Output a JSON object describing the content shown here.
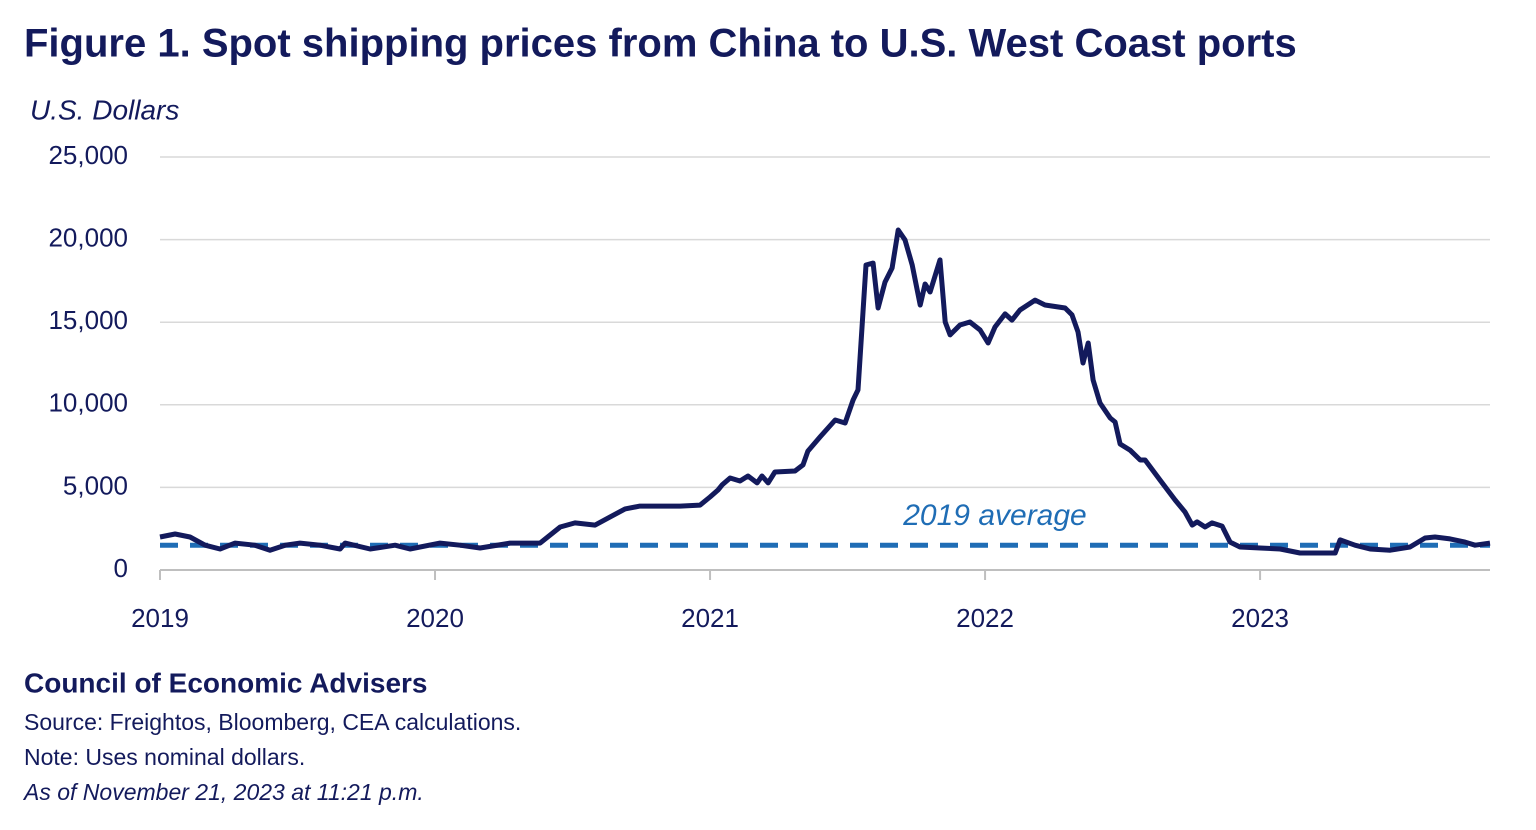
{
  "chart_data": {
    "type": "line",
    "title": "Figure 1. Spot shipping prices from China to U.S. West Coast ports",
    "y_label": "U.S. Dollars",
    "x": [
      2019.0,
      2019.055,
      2019.109,
      2019.164,
      2019.218,
      2019.273,
      2019.345,
      2019.4,
      2019.455,
      2019.509,
      2019.582,
      2019.655,
      2019.673,
      2019.764,
      2019.855,
      2019.909,
      2020.018,
      2020.091,
      2020.164,
      2020.273,
      2020.382,
      2020.455,
      2020.509,
      2020.582,
      2020.636,
      2020.691,
      2020.745,
      2020.891,
      2020.964,
      2021.0,
      2021.029,
      2021.044,
      2021.073,
      2021.109,
      2021.138,
      2021.171,
      2021.189,
      2021.211,
      2021.236,
      2021.309,
      2021.338,
      2021.356,
      2021.4,
      2021.455,
      2021.491,
      2021.52,
      2021.538,
      2021.567,
      2021.593,
      2021.611,
      2021.636,
      2021.662,
      2021.684,
      2021.709,
      2021.735,
      2021.764,
      2021.782,
      2021.8,
      2021.836,
      2021.855,
      2021.873,
      2021.909,
      2021.945,
      2021.982,
      2022.011,
      2022.036,
      2022.073,
      2022.098,
      2022.127,
      2022.182,
      2022.218,
      2022.291,
      2022.316,
      2022.338,
      2022.356,
      2022.375,
      2022.393,
      2022.418,
      2022.455,
      2022.473,
      2022.491,
      2022.527,
      2022.564,
      2022.582,
      2022.636,
      2022.691,
      2022.727,
      2022.753,
      2022.771,
      2022.8,
      2022.825,
      2022.862,
      2022.891,
      2022.927,
      2023.0,
      2023.073,
      2023.145,
      2023.273,
      2023.291,
      2023.345,
      2023.4,
      2023.473,
      2023.545,
      2023.6,
      2023.636,
      2023.691,
      2023.745,
      2023.782,
      2023.836
    ],
    "values": [
      2000,
      2180,
      2000,
      1500,
      1270,
      1630,
      1500,
      1200,
      1500,
      1630,
      1500,
      1270,
      1630,
      1270,
      1500,
      1270,
      1630,
      1500,
      1330,
      1630,
      1630,
      2600,
      2850,
      2720,
      3200,
      3700,
      3870,
      3870,
      3930,
      4420,
      4840,
      5150,
      5570,
      5390,
      5690,
      5270,
      5690,
      5270,
      5930,
      5990,
      6360,
      7200,
      8050,
      9080,
      8900,
      10290,
      10900,
      18460,
      18580,
      15860,
      17430,
      18280,
      20580,
      19980,
      18460,
      16040,
      17310,
      16830,
      18770,
      15010,
      14230,
      14830,
      15010,
      14530,
      13740,
      14710,
      15500,
      15130,
      15740,
      16340,
      16040,
      15860,
      15440,
      14410,
      12530,
      13740,
      11500,
      10110,
      9200,
      8960,
      7630,
      7260,
      6660,
      6660,
      5450,
      4240,
      3510,
      2720,
      2910,
      2600,
      2850,
      2660,
      1690,
      1390,
      1330,
      1270,
      1030,
      1030,
      1820,
      1500,
      1270,
      1200,
      1390,
      1940,
      2000,
      1880,
      1690,
      1500,
      1630
    ],
    "color": "#131a5c",
    "reference_line": {
      "value": 1500,
      "label": "2019 average",
      "color": "#1f6db5"
    },
    "xlim": [
      2019,
      2023.836
    ],
    "xticks": [
      2019,
      2020,
      2021,
      2022,
      2023
    ],
    "ylim": [
      0,
      25000
    ],
    "yticks": [
      0,
      {
        "value": 5000,
        "label": "5,000"
      },
      {
        "value": 10000,
        "label": "10,000"
      },
      {
        "value": 15000,
        "label": "15,000"
      },
      {
        "value": 20000,
        "label": "20,000"
      },
      {
        "value": 25000,
        "label": "25,000"
      }
    ],
    "grid": true,
    "author": "Council of Economic Advisers",
    "source": "Source: Freightos, Bloomberg, CEA calculations.",
    "note": "Note: Uses nominal dollars.",
    "timestamp": "As of November 21, 2023 at 11:21 p.m."
  }
}
